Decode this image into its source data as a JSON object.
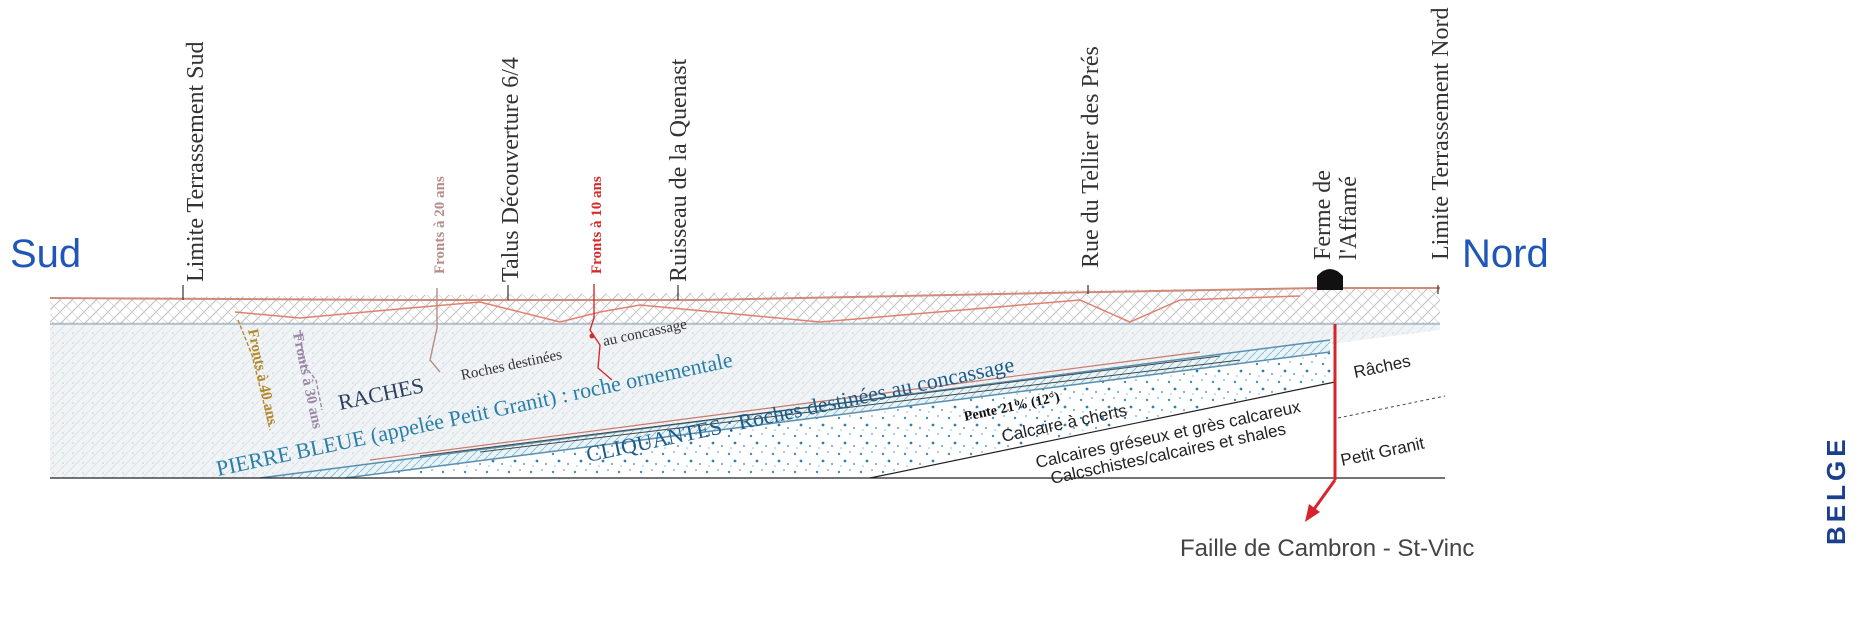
{
  "direction": {
    "south": "Sud",
    "north": "Nord"
  },
  "landmarks": [
    "Limite Terrassement Sud",
    "Talus Découverture 6/4",
    "Ruisseau de la Quenast",
    "Rue du Tellier des Prés",
    "Limite Terrassement Nord"
  ],
  "farm": {
    "line1": "Ferme de",
    "line2": "l'Affamé"
  },
  "fronts": {
    "f10": "Fronts à 10 ans",
    "f20": "Fronts à 20 ans",
    "f30": "Fronts à 30 ans",
    "f40": "Fronts à 40 ans"
  },
  "units": {
    "raches": "RACHES",
    "roches_line1": "Roches destinées",
    "roches_line2": "au concassage",
    "pierre_bleue": "PIERRE BLEUE (appelée Petit Granit) : roche ornementale",
    "cliquantes": "CLIQUANTES : Roches destinées au concassage",
    "pente": "Pente 21% (12°)",
    "calcaire_cherts": "Calcaire à cherts",
    "calcaires_greseux": "Calcaires gréseux et grès calcareux",
    "calcschistes": "Calcschistes/calcaires et shales",
    "raches_right": "Râches",
    "petit_granit": "Petit Granit"
  },
  "fault": "Faille de Cambron - St-Vinc",
  "edge_text": "BELGE",
  "colors": {
    "side_blue": "#1f57b8",
    "fault_red": "#d9232a",
    "pierre_blue": "#2a7fa8",
    "front10": "#d62b2b",
    "front20": "#b78d88",
    "front30": "#9c87a8",
    "front40": "#b48a2c",
    "edge_blue": "#1a3f8f"
  }
}
